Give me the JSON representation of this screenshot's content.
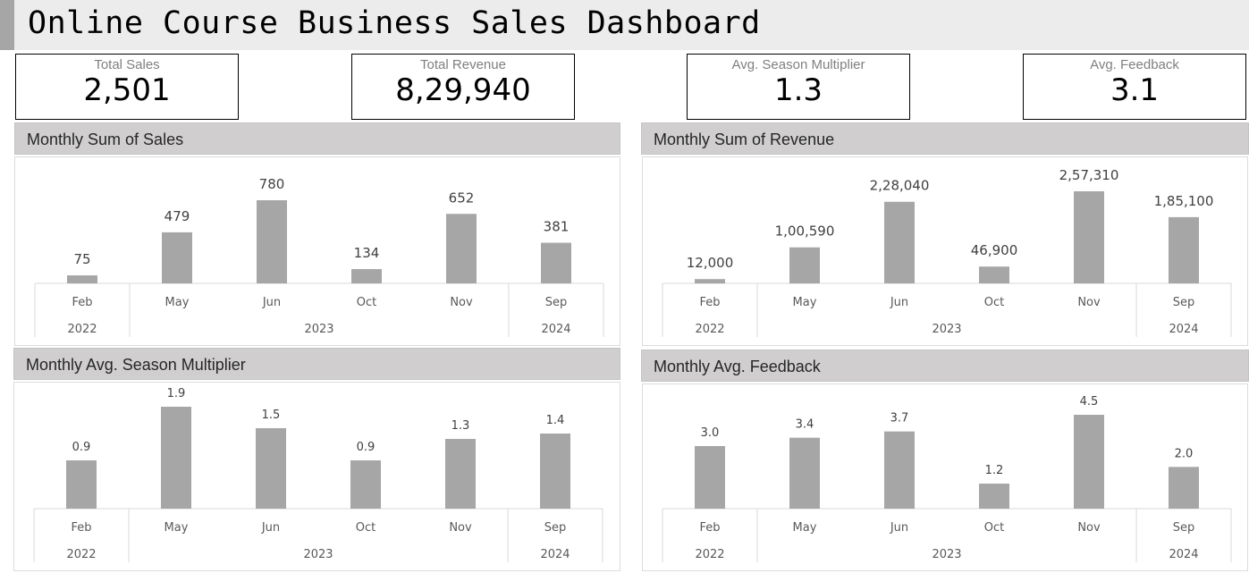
{
  "dashboard": {
    "title": "Online Course Business Sales Dashboard"
  },
  "kpis": [
    {
      "label": "Total Sales",
      "value": "2,501"
    },
    {
      "label": "Total Revenue",
      "value": "8,29,940"
    },
    {
      "label": "Avg. Season Multiplier",
      "value": "1.3"
    },
    {
      "label": "Avg. Feedback",
      "value": "3.1"
    }
  ],
  "chart_data": [
    {
      "type": "bar",
      "title": "Monthly Sum of Sales",
      "categories": [
        "Feb",
        "May",
        "Jun",
        "Oct",
        "Nov",
        "Sep"
      ],
      "groups": [
        {
          "label": "2022",
          "count": 1
        },
        {
          "label": "2023",
          "count": 4
        },
        {
          "label": "2024",
          "count": 1
        }
      ],
      "values": [
        75,
        479,
        780,
        134,
        652,
        381
      ],
      "data_labels": [
        "75",
        "479",
        "780",
        "134",
        "652",
        "381"
      ],
      "ylim": [
        0,
        780
      ]
    },
    {
      "type": "bar",
      "title": "Monthly Sum of Revenue",
      "categories": [
        "Feb",
        "May",
        "Jun",
        "Oct",
        "Nov",
        "Sep"
      ],
      "groups": [
        {
          "label": "2022",
          "count": 1
        },
        {
          "label": "2023",
          "count": 4
        },
        {
          "label": "2024",
          "count": 1
        }
      ],
      "values": [
        12000,
        100590,
        228040,
        46900,
        257310,
        185100
      ],
      "data_labels": [
        "12,000",
        "1,00,590",
        "2,28,040",
        "46,900",
        "2,57,310",
        "1,85,100"
      ],
      "ylim": [
        0,
        257310
      ]
    },
    {
      "type": "bar",
      "title": "Monthly Avg. Season Multiplier",
      "categories": [
        "Feb",
        "May",
        "Jun",
        "Oct",
        "Nov",
        "Sep"
      ],
      "groups": [
        {
          "label": "2022",
          "count": 1
        },
        {
          "label": "2023",
          "count": 4
        },
        {
          "label": "2024",
          "count": 1
        }
      ],
      "values": [
        0.9,
        1.9,
        1.5,
        0.9,
        1.3,
        1.4
      ],
      "data_labels": [
        "0.9",
        "1.9",
        "1.5",
        "0.9",
        "1.3",
        "1.4"
      ],
      "ylim": [
        0,
        1.9
      ]
    },
    {
      "type": "bar",
      "title": "Monthly Avg. Feedback",
      "categories": [
        "Feb",
        "May",
        "Jun",
        "Oct",
        "Nov",
        "Sep"
      ],
      "groups": [
        {
          "label": "2022",
          "count": 1
        },
        {
          "label": "2023",
          "count": 4
        },
        {
          "label": "2024",
          "count": 1
        }
      ],
      "values": [
        3.0,
        3.4,
        3.7,
        1.2,
        4.5,
        2.0
      ],
      "data_labels": [
        "3.0",
        "3.4",
        "3.7",
        "1.2",
        "4.5",
        "2.0"
      ],
      "ylim": [
        0,
        4.5
      ]
    }
  ]
}
